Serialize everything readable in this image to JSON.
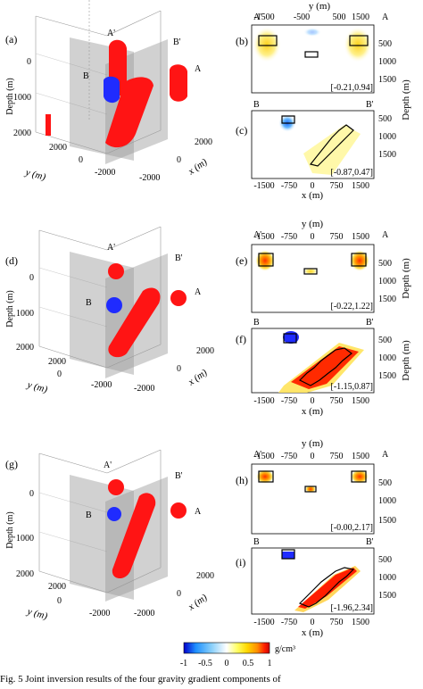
{
  "rows": [
    {
      "panel3d": {
        "label": "(a)"
      },
      "map": {
        "label": "(b)",
        "top_label": "y (m)",
        "range": "[-0.21,0.94]"
      },
      "section": {
        "label": "(c)",
        "bottom_label": "x (m)",
        "range": "[-0.87,0.47]"
      }
    },
    {
      "panel3d": {
        "label": "(d)"
      },
      "map": {
        "label": "(e)",
        "top_label": "y (m)",
        "range": "[-0.22,1.22]"
      },
      "section": {
        "label": "(f)",
        "bottom_label": "x (m)",
        "range": "[-1.15,0.87]"
      }
    },
    {
      "panel3d": {
        "label": "(g)"
      },
      "map": {
        "label": "(h)",
        "top_label": "y (m)",
        "range": "[-0.00,2.17]"
      },
      "section": {
        "label": "(i)",
        "bottom_label": "x (m)",
        "range": "[-1.96,2.34]"
      }
    }
  ],
  "axes3d": {
    "depth_label": "Depth (m)",
    "y_label": "y (m)",
    "x_label": "x (m)",
    "depth_ticks": [
      "0",
      "1000",
      "2000"
    ],
    "y_ticks": [
      "2000",
      "0",
      "-2000"
    ],
    "x_ticks": [
      "2000",
      "0",
      "-2000"
    ]
  },
  "profile_letters": {
    "a": "A",
    "a_prime": "A'",
    "b": "B",
    "b_prime": "B'"
  },
  "map_top_ticks": [
    [
      "-1500",
      "-500",
      "500",
      "1500"
    ],
    [
      "-1500",
      "-750",
      "0",
      "750",
      "1500"
    ],
    [
      "-1500",
      "-750",
      "0",
      "750",
      "1500"
    ]
  ],
  "depth_ticks_right": [
    "500",
    "1000",
    "1500"
  ],
  "x_ticks_bottom": [
    "-1500",
    "-750",
    "0",
    "750",
    "1500"
  ],
  "right_axis_label": "Depth (m)",
  "colorbar": {
    "ticks": [
      "-1",
      "-0.5",
      "0",
      "0.5",
      "1"
    ],
    "unit": "g/cm³",
    "stops": [
      "#0000cc",
      "#1e90ff",
      "#87cefa",
      "#ffffff",
      "#ffff66",
      "#ffd700",
      "#ff8c00",
      "#ff2200",
      "#cc0000"
    ]
  },
  "colors": {
    "positive": "#ff1414",
    "negative": "#1f2bff",
    "plane": "#9a9a9a"
  },
  "caption": "Fig. 5    Joint inversion results of the four gravity gradient components of"
}
